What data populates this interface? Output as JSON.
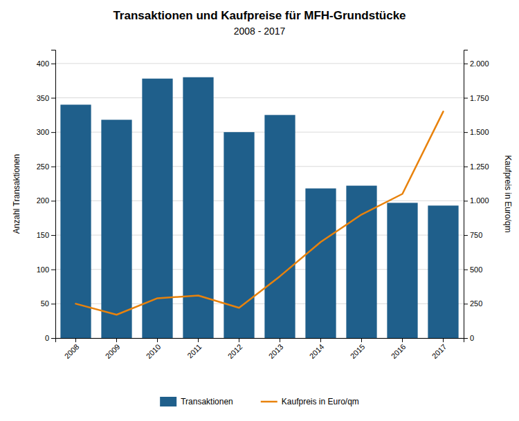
{
  "chart_data": {
    "type": "bar",
    "title": "Transaktionen und Kaufpreise für MFH-Grundstücke",
    "subtitle": "2008 - 2017",
    "categories": [
      "2008",
      "2009",
      "2010",
      "2011",
      "2012",
      "2013",
      "2014",
      "2015",
      "2016",
      "2017"
    ],
    "ylabel": "Anzahl Transaktionen",
    "y2label": "Kaufpreis in Euro/qm",
    "ylim": [
      0,
      420
    ],
    "yticks": [
      0,
      50,
      100,
      150,
      200,
      250,
      300,
      350,
      400
    ],
    "y2lim": [
      0,
      2100
    ],
    "y2ticks": [
      0,
      250,
      500,
      750,
      {
        "value": 1000,
        "label": "1.000"
      },
      {
        "value": 1250,
        "label": "1.250"
      },
      {
        "value": 1500,
        "label": "1.500"
      },
      {
        "value": 1750,
        "label": "1.750"
      },
      {
        "value": 2000,
        "label": "2.000"
      }
    ],
    "grid": true,
    "legend": "bottom",
    "series": [
      {
        "name": "Transaktionen",
        "type": "bar",
        "color": "#1f5f8b",
        "values": [
          340,
          318,
          378,
          380,
          300,
          325,
          218,
          222,
          197,
          193
        ]
      },
      {
        "name": "Kaufpreis in Euro/qm",
        "type": "line",
        "color": "#e8820c",
        "axis": "y2",
        "values": [
          250,
          170,
          290,
          310,
          220,
          450,
          700,
          900,
          1050,
          1650
        ]
      }
    ]
  }
}
